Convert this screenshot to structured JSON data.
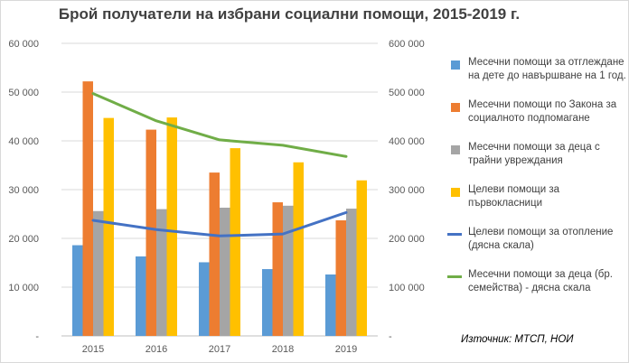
{
  "chart_data": {
    "type": "bar",
    "title": "Брой получатели на избрани социални помощи, 2015-2019 г.",
    "categories": [
      "2015",
      "2016",
      "2017",
      "2018",
      "2019"
    ],
    "y_left": {
      "ylim": [
        0,
        60000
      ],
      "ticks": [
        "-",
        "10 000",
        "20 000",
        "30 000",
        "40 000",
        "50 000",
        "60 000"
      ]
    },
    "y_right": {
      "ylim": [
        0,
        600000
      ],
      "ticks": [
        "-",
        "100 000",
        "200 000",
        "300 000",
        "400 000",
        "500 000",
        "600 000"
      ]
    },
    "grid": true,
    "legend_position": "right",
    "series": [
      {
        "name": "Месечни помощи за отглеждане на дете до навършване на 1 год.",
        "type": "bar",
        "axis": "left",
        "color": "#5b9bd5",
        "values": [
          18600,
          16300,
          15100,
          13700,
          12600
        ]
      },
      {
        "name": "Месечни помощи по Закона за социалното подпомагане",
        "type": "bar",
        "axis": "left",
        "color": "#ed7d31",
        "values": [
          52200,
          42300,
          33500,
          27400,
          23700
        ]
      },
      {
        "name": "Месечни помощи за деца с трайни увреждания",
        "type": "bar",
        "axis": "left",
        "color": "#a5a5a5",
        "values": [
          25600,
          26000,
          26300,
          26700,
          26100
        ]
      },
      {
        "name": "Целеви помощи за първокласници",
        "type": "bar",
        "axis": "left",
        "color": "#ffc000",
        "values": [
          44700,
          44800,
          38500,
          35600,
          31900
        ]
      },
      {
        "name": "Целеви помощи за отопление (дясна скала)",
        "type": "line",
        "axis": "right",
        "color": "#4472c4",
        "values": [
          237000,
          218000,
          205000,
          209000,
          253000
        ]
      },
      {
        "name": "Месечни помощи за деца (бр. семейства) - дясна скала",
        "type": "line",
        "axis": "right",
        "color": "#70ad47",
        "values": [
          497000,
          441000,
          402000,
          391000,
          368000
        ]
      }
    ]
  },
  "source": "Източник: МТСП, НОИ"
}
